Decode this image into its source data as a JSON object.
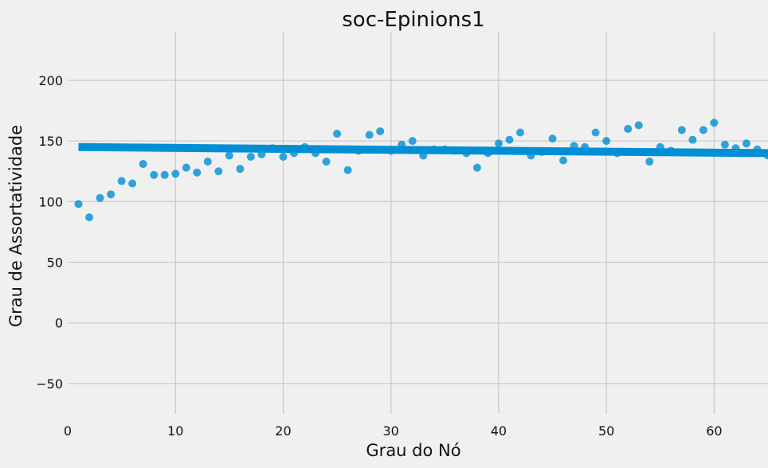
{
  "chart_data": {
    "type": "scatter",
    "title": "soc-Epinions1",
    "xlabel": "Grau do Nó",
    "ylabel": "Grau de Assortatividade",
    "xlim": [
      0,
      65
    ],
    "ylim": [
      -75,
      240
    ],
    "xticks": [
      "0",
      "10",
      "20",
      "30",
      "40",
      "50",
      "60"
    ],
    "yticks": [
      "−50",
      "0",
      "50",
      "100",
      "150",
      "200"
    ],
    "grid": true,
    "point_color": "#008fd5",
    "line_color": "#008fd5",
    "background": "#f0f0f0",
    "series": [
      {
        "x": [
          1,
          2,
          3,
          4,
          5,
          6,
          7,
          8,
          9,
          10,
          11,
          12,
          13,
          14,
          15,
          16,
          17,
          18,
          19,
          20,
          21,
          22,
          23,
          24,
          25,
          26,
          27,
          28,
          29,
          30,
          31,
          32,
          33,
          34,
          35,
          36,
          37,
          38,
          39,
          40,
          41,
          42,
          43,
          44,
          45,
          46,
          47,
          48,
          49,
          50,
          51,
          52,
          53,
          54,
          55,
          56,
          57,
          58,
          59,
          60,
          61,
          62,
          63,
          64,
          65
        ],
        "y": [
          98,
          87,
          103,
          106,
          117,
          115,
          131,
          122,
          122,
          123,
          128,
          124,
          133,
          125,
          138,
          127,
          137,
          139,
          144,
          137,
          140,
          145,
          140,
          133,
          156,
          126,
          142,
          155,
          158,
          142,
          147,
          150,
          138,
          143,
          143,
          142,
          140,
          128,
          140,
          148,
          151,
          157,
          138,
          141,
          152,
          134,
          146,
          145,
          157,
          150,
          140,
          160,
          163,
          133,
          145,
          142,
          159,
          151,
          159,
          165,
          147,
          144,
          148,
          143,
          138
        ]
      }
    ],
    "regression": {
      "x": [
        1,
        65
      ],
      "y": [
        145,
        140
      ]
    }
  }
}
